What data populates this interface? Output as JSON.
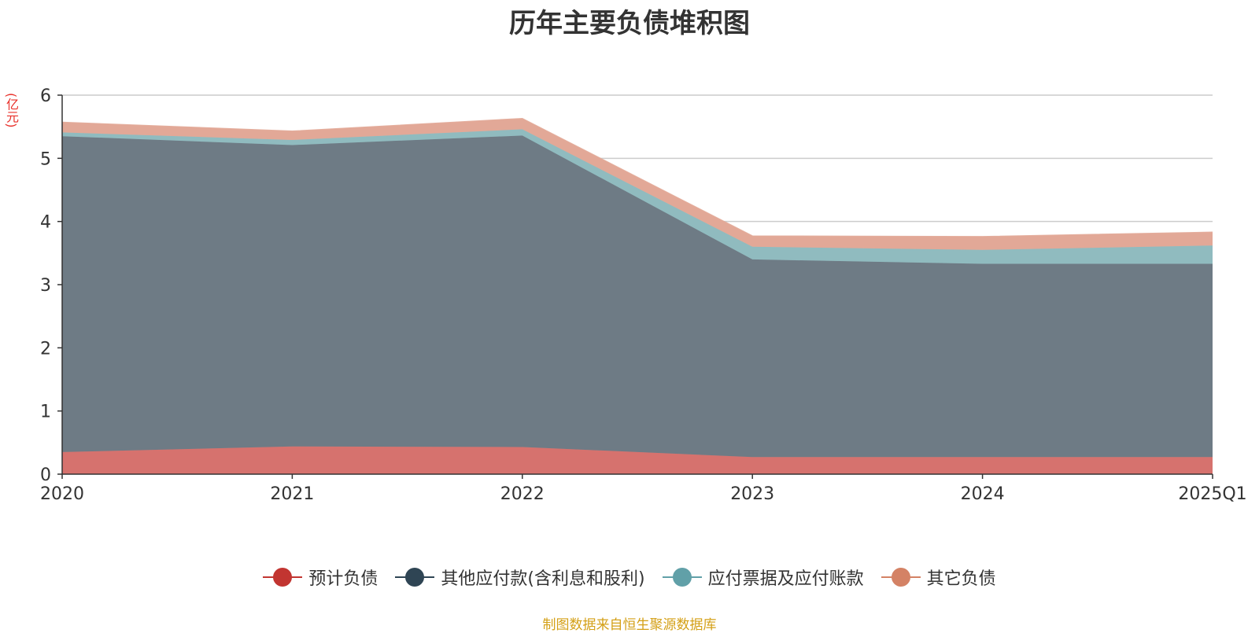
{
  "chart_data": {
    "type": "area",
    "stacked": true,
    "title": "历年主要负债堆积图",
    "unit": "(亿元)",
    "categories": [
      "2020",
      "2021",
      "2022",
      "2023",
      "2024",
      "2025Q1"
    ],
    "ylim": [
      0,
      6
    ],
    "yticks": [
      0,
      1,
      2,
      3,
      4,
      5,
      6
    ],
    "grid": true,
    "legend_position": "bottom",
    "series": [
      {
        "name": "预计负债",
        "color": "#c23531",
        "fill": "#d6726e",
        "values": [
          0.35,
          0.44,
          0.43,
          0.27,
          0.27,
          0.27
        ]
      },
      {
        "name": "其他应付款(含利息和股利)",
        "color": "#2f4554",
        "fill": "#6e7b85",
        "values": [
          5.0,
          4.77,
          4.93,
          3.13,
          3.06,
          3.06
        ]
      },
      {
        "name": "应付票据及应付账款",
        "color": "#61a0a8",
        "fill": "#90bbbf",
        "values": [
          0.06,
          0.08,
          0.1,
          0.2,
          0.22,
          0.29
        ]
      },
      {
        "name": "其它负债",
        "color": "#d48265",
        "fill": "#e2a897",
        "values": [
          0.16,
          0.14,
          0.17,
          0.17,
          0.21,
          0.21
        ]
      }
    ]
  },
  "source_note": "制图数据来自恒生聚源数据库"
}
